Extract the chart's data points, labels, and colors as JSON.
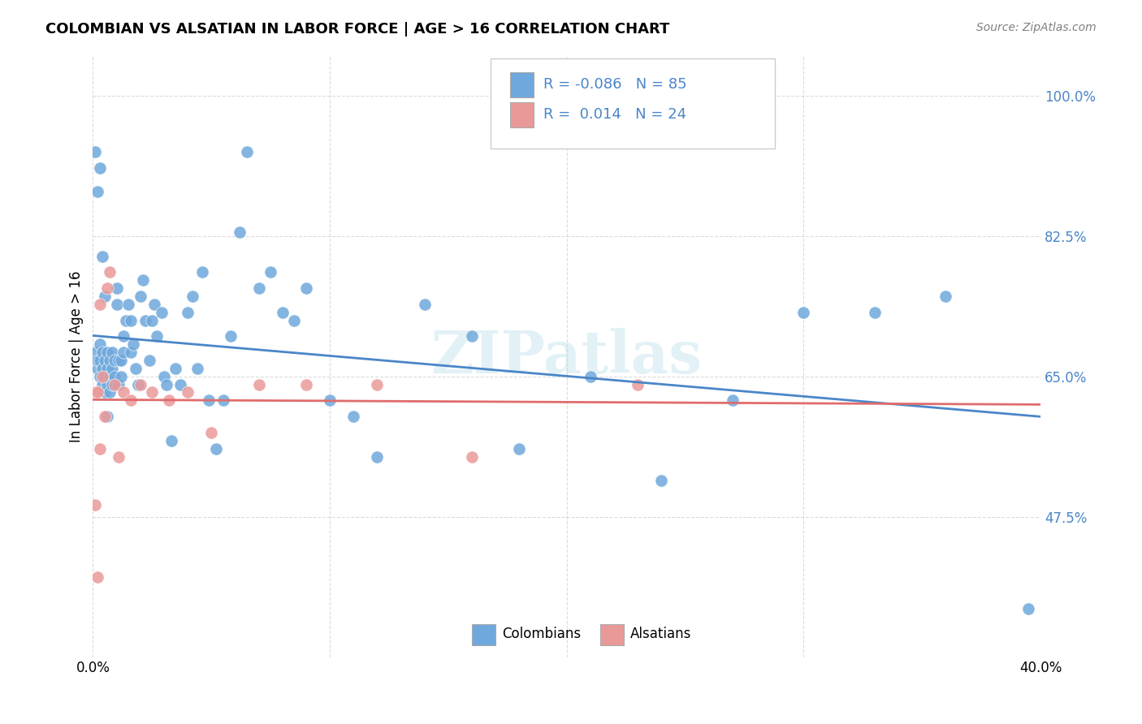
{
  "title": "COLOMBIAN VS ALSATIAN IN LABOR FORCE | AGE > 16 CORRELATION CHART",
  "source": "Source: ZipAtlas.com",
  "xlabel": "",
  "ylabel": "In Labor Force | Age > 16",
  "xlim": [
    0.0,
    0.4
  ],
  "ylim": [
    0.3,
    1.05
  ],
  "yticks": [
    0.475,
    0.65,
    0.825,
    1.0
  ],
  "ytick_labels": [
    "47.5%",
    "65.0%",
    "82.5%",
    "100.0%"
  ],
  "xticks": [
    0.0,
    0.1,
    0.2,
    0.3,
    0.4
  ],
  "xtick_labels": [
    "0.0%",
    "",
    "",
    "",
    "40.0%"
  ],
  "colombian_R": "-0.086",
  "colombian_N": "85",
  "alsatian_R": "0.014",
  "alsatian_N": "24",
  "blue_color": "#6fa8dc",
  "pink_color": "#ea9999",
  "blue_line_color": "#4a86c8",
  "pink_line_color": "#e06c6c",
  "watermark": "ZIPatlas",
  "background_color": "#ffffff",
  "grid_color": "#cccccc",
  "colombian_x": [
    0.001,
    0.002,
    0.002,
    0.003,
    0.003,
    0.003,
    0.004,
    0.004,
    0.004,
    0.005,
    0.005,
    0.005,
    0.006,
    0.006,
    0.006,
    0.007,
    0.007,
    0.007,
    0.008,
    0.008,
    0.008,
    0.009,
    0.009,
    0.01,
    0.01,
    0.011,
    0.011,
    0.012,
    0.012,
    0.013,
    0.013,
    0.014,
    0.015,
    0.016,
    0.016,
    0.017,
    0.018,
    0.019,
    0.02,
    0.021,
    0.022,
    0.024,
    0.025,
    0.026,
    0.027,
    0.029,
    0.03,
    0.031,
    0.033,
    0.035,
    0.037,
    0.04,
    0.042,
    0.044,
    0.046,
    0.049,
    0.052,
    0.055,
    0.058,
    0.062,
    0.065,
    0.07,
    0.075,
    0.08,
    0.085,
    0.09,
    0.1,
    0.11,
    0.12,
    0.14,
    0.16,
    0.18,
    0.21,
    0.24,
    0.27,
    0.3,
    0.33,
    0.36,
    0.395,
    0.001,
    0.002,
    0.003,
    0.004,
    0.005,
    0.006
  ],
  "colombian_y": [
    0.68,
    0.66,
    0.67,
    0.65,
    0.67,
    0.69,
    0.64,
    0.66,
    0.68,
    0.63,
    0.65,
    0.67,
    0.64,
    0.66,
    0.68,
    0.63,
    0.65,
    0.67,
    0.64,
    0.66,
    0.68,
    0.65,
    0.67,
    0.74,
    0.76,
    0.64,
    0.67,
    0.65,
    0.67,
    0.68,
    0.7,
    0.72,
    0.74,
    0.72,
    0.68,
    0.69,
    0.66,
    0.64,
    0.75,
    0.77,
    0.72,
    0.67,
    0.72,
    0.74,
    0.7,
    0.73,
    0.65,
    0.64,
    0.57,
    0.66,
    0.64,
    0.73,
    0.75,
    0.66,
    0.78,
    0.62,
    0.56,
    0.62,
    0.7,
    0.83,
    0.93,
    0.76,
    0.78,
    0.73,
    0.72,
    0.76,
    0.62,
    0.6,
    0.55,
    0.74,
    0.7,
    0.56,
    0.65,
    0.52,
    0.62,
    0.73,
    0.73,
    0.75,
    0.36,
    0.93,
    0.88,
    0.91,
    0.8,
    0.75,
    0.6
  ],
  "alsatian_x": [
    0.001,
    0.001,
    0.002,
    0.002,
    0.003,
    0.003,
    0.004,
    0.005,
    0.006,
    0.007,
    0.009,
    0.011,
    0.013,
    0.016,
    0.02,
    0.025,
    0.032,
    0.04,
    0.05,
    0.07,
    0.09,
    0.12,
    0.16,
    0.23
  ],
  "alsatian_y": [
    0.63,
    0.49,
    0.63,
    0.4,
    0.74,
    0.56,
    0.65,
    0.6,
    0.76,
    0.78,
    0.64,
    0.55,
    0.63,
    0.62,
    0.64,
    0.63,
    0.62,
    0.63,
    0.58,
    0.64,
    0.64,
    0.64,
    0.55,
    0.64
  ]
}
